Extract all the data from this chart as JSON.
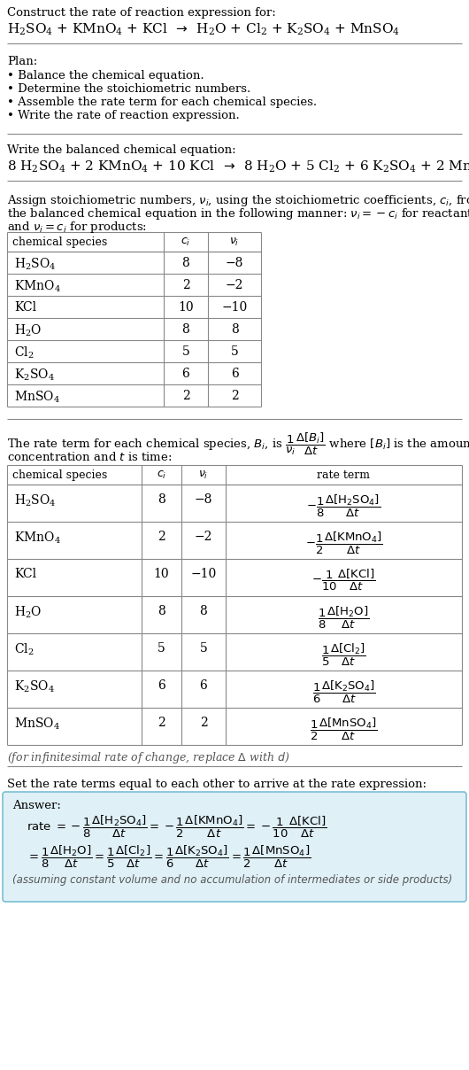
{
  "bg_color": "#ffffff",
  "text_color": "#000000",
  "gray_text": "#555555",
  "table_line_color": "#999999",
  "separator_color": "#aaaaaa",
  "answer_box_bg": "#dff0f7",
  "answer_box_border": "#7bbfd4",
  "species_list": [
    "H_2SO_4",
    "KMnO_4",
    "KCl",
    "H_2O",
    "Cl_2",
    "K_2SO_4",
    "MnSO_4"
  ],
  "ci_list": [
    "8",
    "2",
    "10",
    "8",
    "5",
    "6",
    "2"
  ],
  "vi_list": [
    "-8",
    "-2",
    "-10",
    "8",
    "5",
    "6",
    "2"
  ]
}
